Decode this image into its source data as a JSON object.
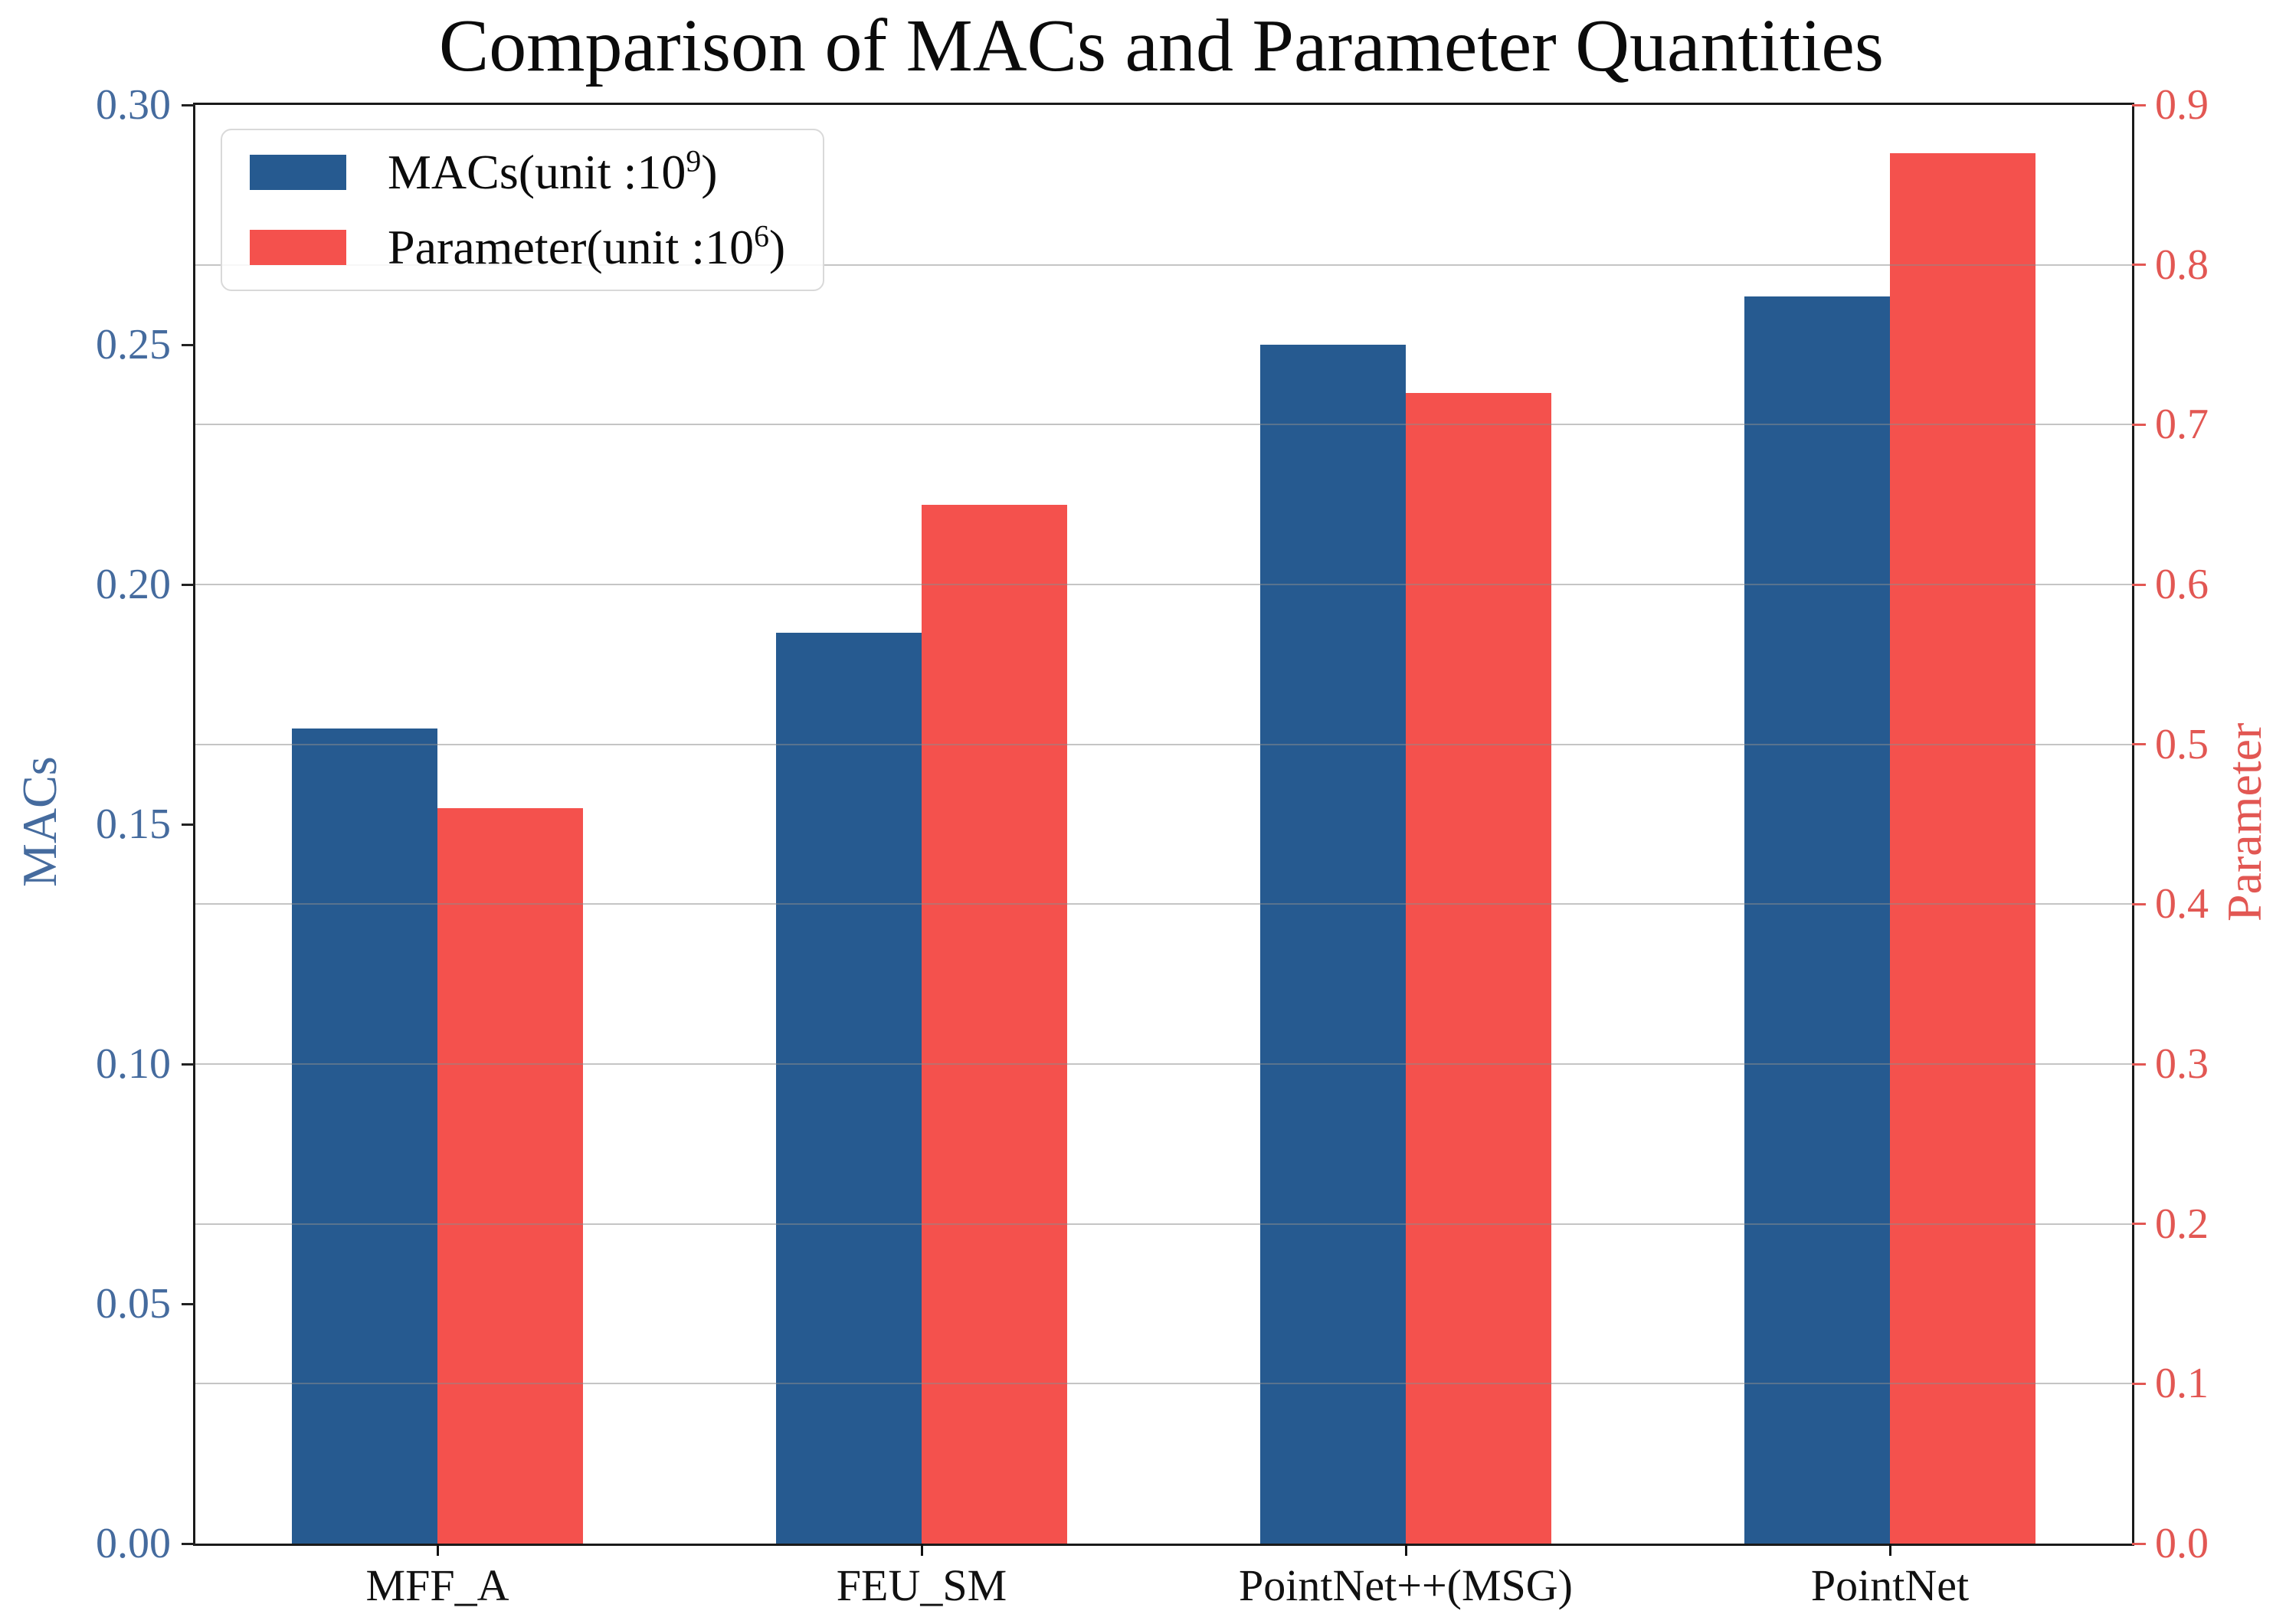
{
  "chart_data": {
    "type": "bar",
    "title": "Comparison of MACs and Parameter Quantities",
    "categories": [
      "MFF_A",
      "FEU_SM",
      "PointNet++(MSG)",
      "PointNet"
    ],
    "series": [
      {
        "name": "MACs",
        "axis": "left",
        "color": "#265a90",
        "values": [
          0.17,
          0.19,
          0.25,
          0.26
        ],
        "legend": {
          "base": "MACs(unit :10",
          "sup": "9",
          "end": ")"
        }
      },
      {
        "name": "Parameter",
        "axis": "right",
        "color": "#f4514d",
        "values": [
          0.46,
          0.65,
          0.72,
          0.87
        ],
        "legend": {
          "base": "Parameter(unit :10",
          "sup": "6",
          "end": ")"
        }
      }
    ],
    "left_axis": {
      "label": "MACs",
      "min": 0,
      "max": 0.3,
      "tick_labels": [
        "0.00",
        "0.05",
        "0.10",
        "0.15",
        "0.20",
        "0.25",
        "0.30"
      ],
      "text_color": "#456b9e",
      "tick_mark_color": "#222222"
    },
    "right_axis": {
      "label": "Parameter",
      "min": 0,
      "max": 0.9,
      "tick_labels": [
        "0.0",
        "0.1",
        "0.2",
        "0.3",
        "0.4",
        "0.5",
        "0.6",
        "0.7",
        "0.8",
        "0.9"
      ],
      "text_color": "#e25753",
      "tick_mark_color": "#e25753"
    },
    "x_axis": {
      "tick_mark_color": "#111111"
    },
    "grid": {
      "show": true,
      "follows": "right-axis-ticks",
      "color": "rgba(140,140,140,0.5)"
    },
    "legend_position": "upper-left",
    "bar_width_frac": 0.3
  }
}
